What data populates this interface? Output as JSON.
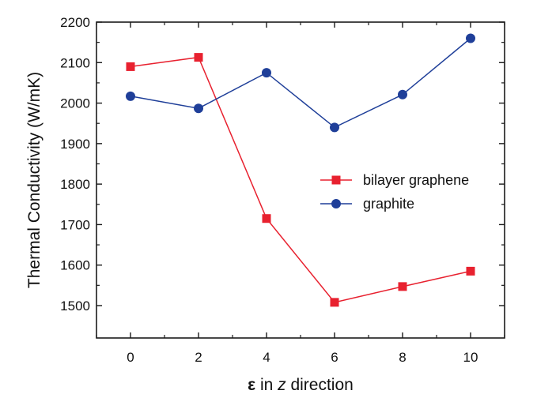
{
  "chart_data": {
    "type": "line",
    "title": "",
    "xlabel": {
      "symbol": "ε",
      "middle": " in ",
      "italic_var": "z",
      "suffix": " direction"
    },
    "ylabel": "Thermal Conductivity (W/mK)",
    "x": [
      0,
      2,
      4,
      6,
      8,
      10
    ],
    "xlim": [
      -1,
      11
    ],
    "ylim": [
      1420,
      2200
    ],
    "xticks": [
      0,
      2,
      4,
      6,
      8,
      10
    ],
    "yticks": [
      1500,
      1600,
      1700,
      1800,
      1900,
      2000,
      2100,
      2200
    ],
    "grid": false,
    "legend_position": "center-right",
    "series": [
      {
        "name": "bilayer graphene",
        "marker": "square",
        "color": "#e8212f",
        "values": [
          2090,
          2113,
          1715,
          1508,
          1547,
          1585
        ]
      },
      {
        "name": "graphite",
        "marker": "circle",
        "color": "#1f3f99",
        "values": [
          2017,
          1987,
          2075,
          1940,
          2021,
          2160
        ]
      }
    ]
  }
}
